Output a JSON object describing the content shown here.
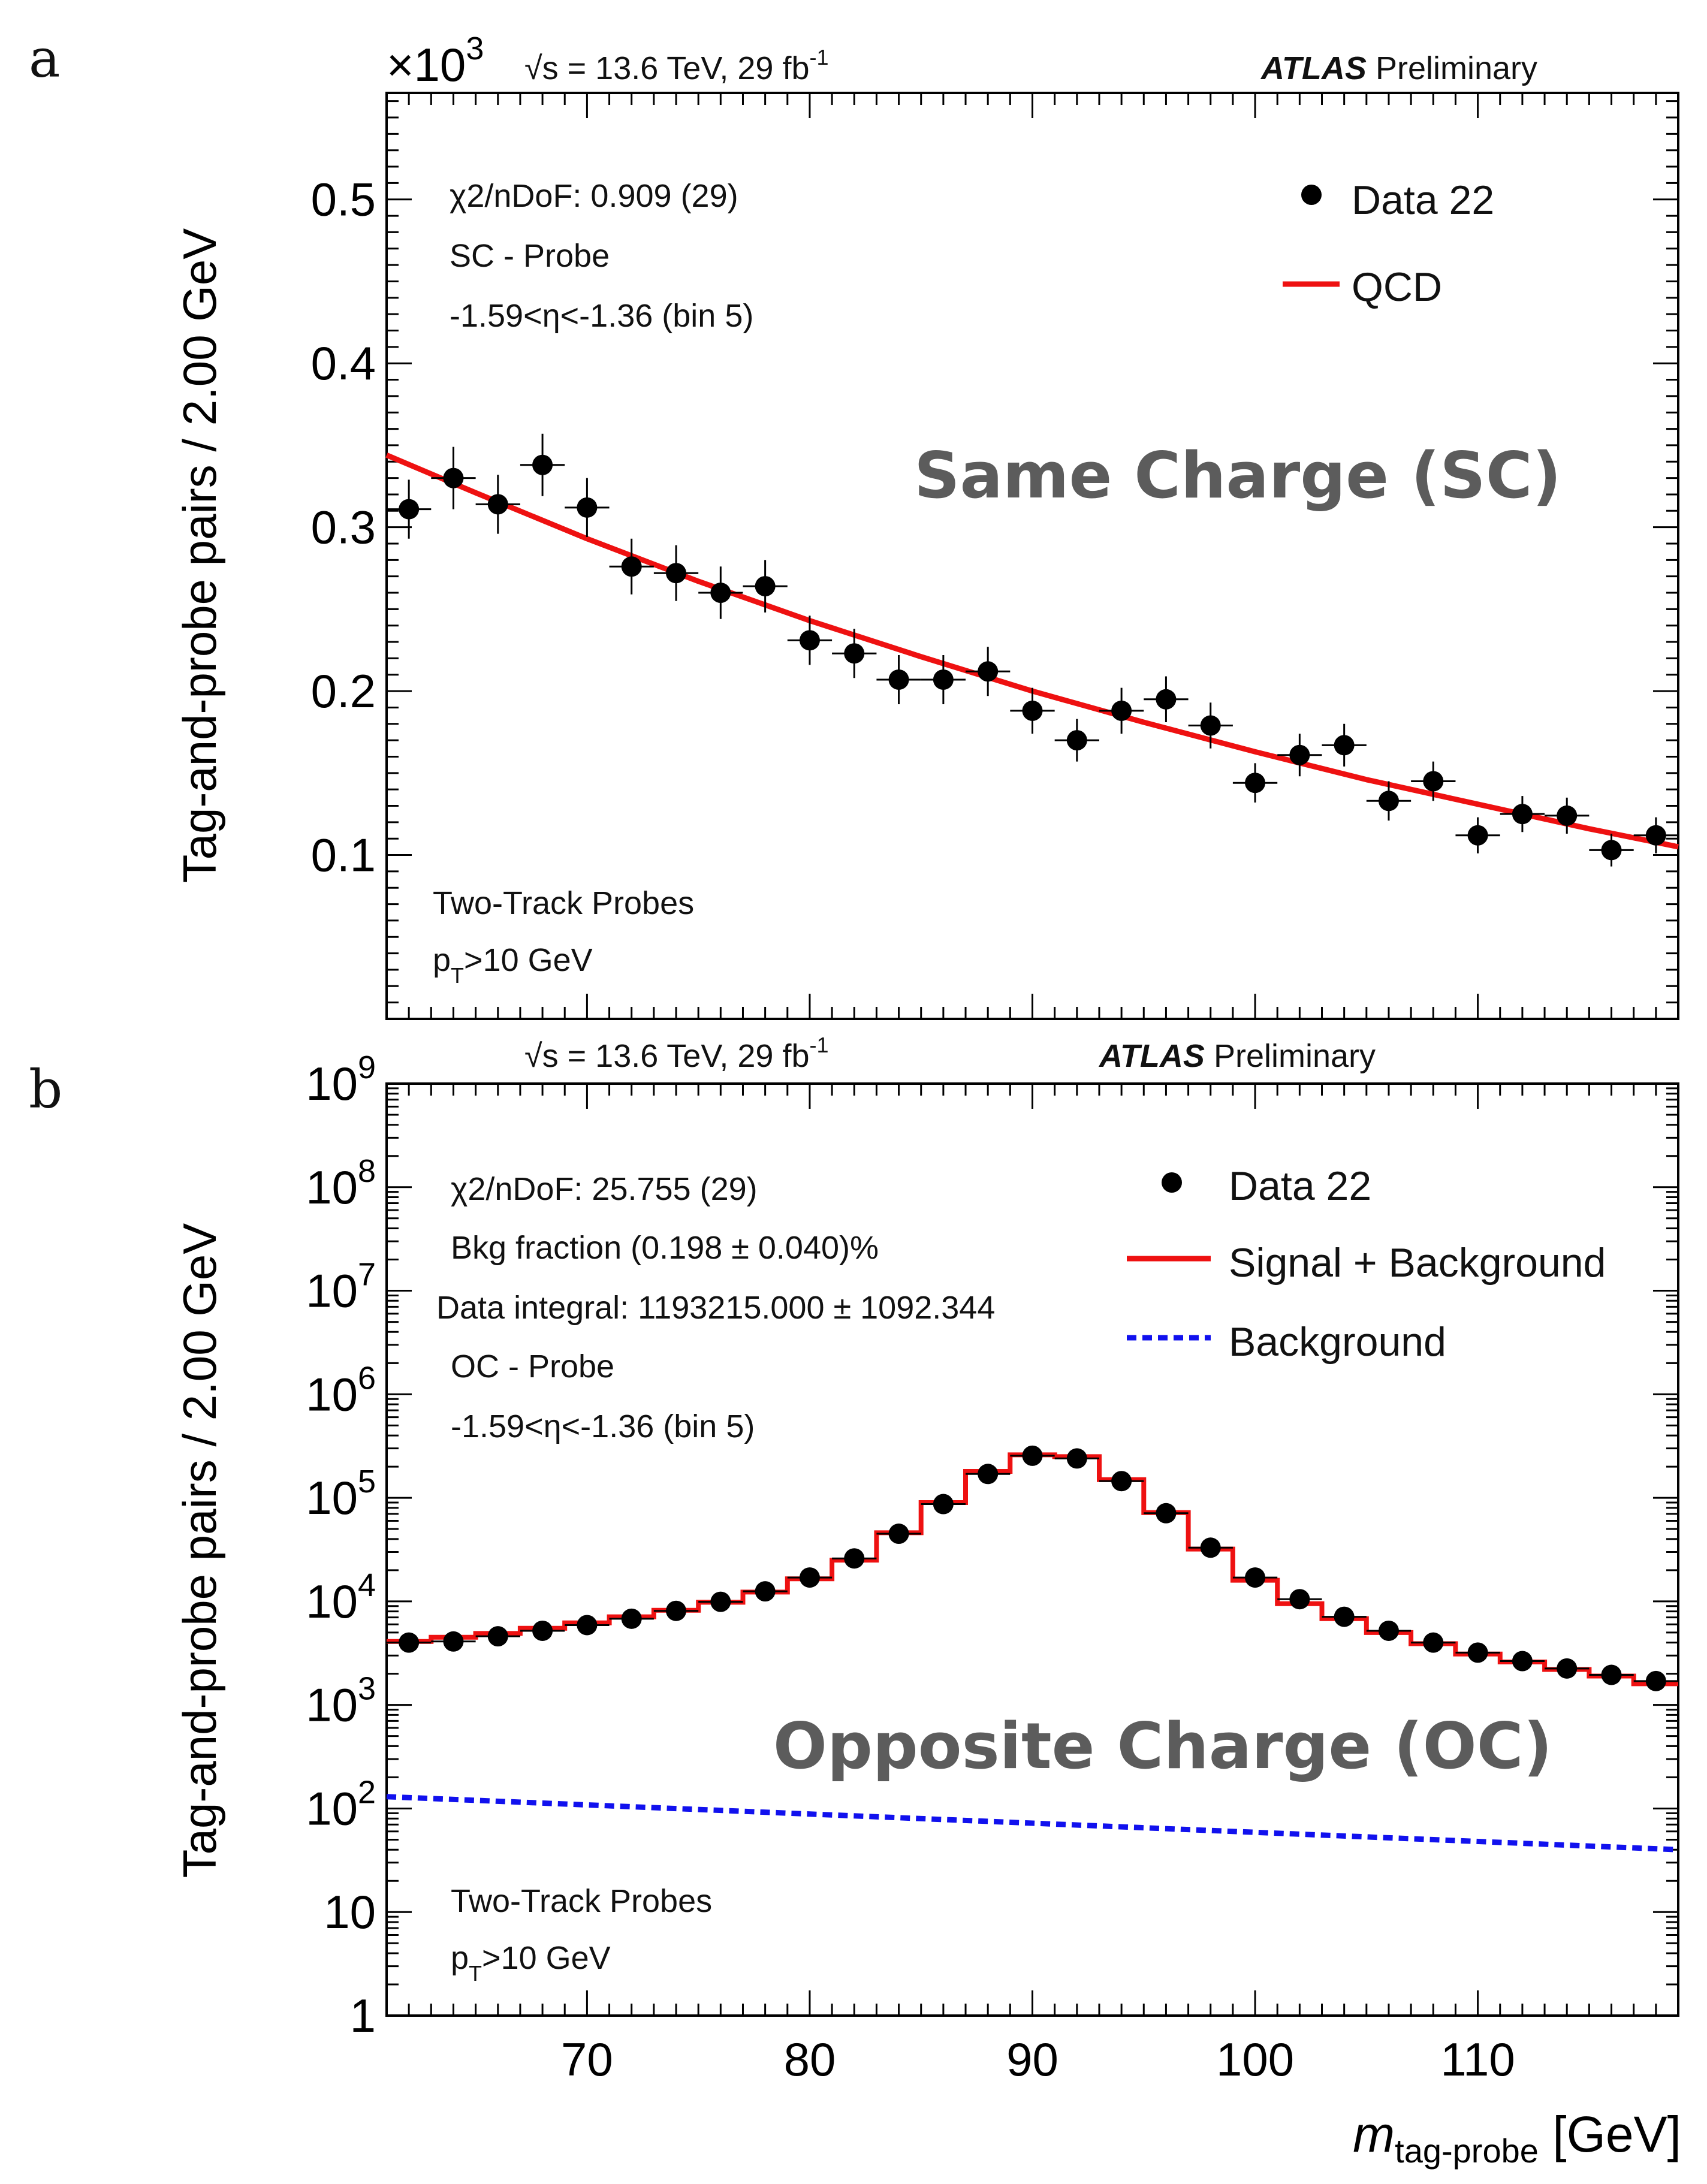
{
  "panel_labels": {
    "a": "a",
    "b": "b"
  },
  "header": {
    "energy_prefix": "√s = 13.6 TeV, 29 fb",
    "energy_sup": "-1",
    "experiment": "ATLAS",
    "status": "Preliminary"
  },
  "x_axis": {
    "label_main": "m",
    "label_sub": "tag-probe",
    "label_unit": " [GeV]"
  },
  "y_axis_label": "Tag-and-probe pairs / 2.00 GeV",
  "colors": {
    "fit": "#ee1111",
    "background": "#1111ee",
    "data": "#000000",
    "watermark": "#5c5c5c"
  },
  "chart_data": [
    {
      "type": "scatter",
      "panel": "a",
      "title": "Same Charge (SC)",
      "ylabel": "Tag-and-probe pairs / 2.00 GeV",
      "xlabel": "m_tag-probe [GeV]",
      "scale_label": "×10",
      "scale_exp": "3",
      "xlim": [
        61,
        119
      ],
      "ylim": [
        0,
        0.565
      ],
      "y_ticks": [
        0.1,
        0.2,
        0.3,
        0.4,
        0.5
      ],
      "y_tick_labels": [
        "0.1",
        "0.2",
        "0.3",
        "0.4",
        "0.5"
      ],
      "annotations": [
        "χ2/nDoF: 0.909 (29)",
        "SC - Probe",
        "-1.59<η<-1.36 (bin 5)"
      ],
      "probe_info": [
        "Two-Track Probes",
        "p",
        "T",
        ">10 GeV"
      ],
      "legend": [
        "Data 22",
        "QCD"
      ],
      "bin_width": 2,
      "x": [
        62,
        64,
        66,
        68,
        70,
        72,
        74,
        76,
        78,
        80,
        82,
        84,
        86,
        88,
        90,
        92,
        94,
        96,
        98,
        100,
        102,
        104,
        106,
        108,
        110,
        112,
        114,
        116,
        118
      ],
      "series": [
        {
          "name": "Data 22",
          "values": [
            0.311,
            0.33,
            0.314,
            0.338,
            0.312,
            0.276,
            0.272,
            0.26,
            0.264,
            0.231,
            0.223,
            0.207,
            0.207,
            0.212,
            0.188,
            0.17,
            0.188,
            0.195,
            0.179,
            0.144,
            0.161,
            0.167,
            0.133,
            0.145,
            0.112,
            0.125,
            0.124,
            0.103,
            0.112
          ],
          "errors": [
            0.018,
            0.019,
            0.018,
            0.019,
            0.018,
            0.017,
            0.017,
            0.016,
            0.016,
            0.015,
            0.015,
            0.015,
            0.015,
            0.015,
            0.014,
            0.013,
            0.014,
            0.014,
            0.014,
            0.012,
            0.013,
            0.013,
            0.012,
            0.012,
            0.011,
            0.011,
            0.011,
            0.01,
            0.011
          ]
        },
        {
          "name": "QCD",
          "x": [
            61,
            65,
            70,
            75,
            80,
            85,
            90,
            95,
            100,
            105,
            110,
            115,
            119
          ],
          "values": [
            0.344,
            0.321,
            0.293,
            0.267,
            0.243,
            0.221,
            0.2,
            0.181,
            0.163,
            0.146,
            0.131,
            0.116,
            0.105
          ]
        }
      ]
    },
    {
      "type": "line",
      "panel": "b",
      "title": "Opposite Charge (OC)",
      "ylabel": "Tag-and-probe pairs / 2.00 GeV",
      "xlabel": "m_tag-probe [GeV]",
      "yscale": "log",
      "xlim": [
        61,
        119
      ],
      "ylim": [
        1,
        1000000000
      ],
      "x_ticks": [
        70,
        80,
        90,
        100,
        110
      ],
      "y_tick_labels": [
        {
          "base": "1",
          "exp": ""
        },
        {
          "base": "10",
          "exp": ""
        },
        {
          "base": "10",
          "exp": "2"
        },
        {
          "base": "10",
          "exp": "3"
        },
        {
          "base": "10",
          "exp": "4"
        },
        {
          "base": "10",
          "exp": "5"
        },
        {
          "base": "10",
          "exp": "6"
        },
        {
          "base": "10",
          "exp": "7"
        },
        {
          "base": "10",
          "exp": "8"
        },
        {
          "base": "10",
          "exp": "9"
        }
      ],
      "annotations": [
        "χ2/nDoF: 25.755 (29)",
        "Bkg fraction (0.198 ± 0.040)%",
        "Data integral: 1193215.000 ± 1092.344",
        "OC - Probe",
        "-1.59<η<-1.36 (bin 5)"
      ],
      "probe_info": [
        "Two-Track Probes",
        "p",
        "T",
        ">10 GeV"
      ],
      "legend": [
        "Data 22",
        "Signal + Background",
        "Background"
      ],
      "bin_width": 2,
      "x": [
        62,
        64,
        66,
        68,
        70,
        72,
        74,
        76,
        78,
        80,
        82,
        84,
        86,
        88,
        90,
        92,
        94,
        96,
        98,
        100,
        102,
        104,
        106,
        108,
        110,
        112,
        114,
        116,
        118
      ],
      "series": [
        {
          "name": "Data 22",
          "values": [
            4000,
            4100,
            4600,
            5200,
            5900,
            6800,
            8100,
            9900,
            12500,
            17000,
            26000,
            45000,
            87000,
            170000,
            255000,
            240000,
            145000,
            71000,
            33000,
            17000,
            10500,
            7100,
            5200,
            4000,
            3200,
            2650,
            2250,
            1950,
            1700
          ]
        },
        {
          "name": "Signal + Background",
          "values": [
            4100,
            4500,
            4900,
            5500,
            6200,
            7100,
            8200,
            9800,
            12300,
            16500,
            25000,
            46000,
            90000,
            180000,
            260000,
            250000,
            150000,
            72000,
            32000,
            16000,
            9500,
            6800,
            5000,
            3900,
            3100,
            2600,
            2200,
            1900,
            1600
          ]
        },
        {
          "name": "Background",
          "x": [
            61,
            119
          ],
          "values": [
            130,
            40
          ]
        }
      ]
    }
  ]
}
